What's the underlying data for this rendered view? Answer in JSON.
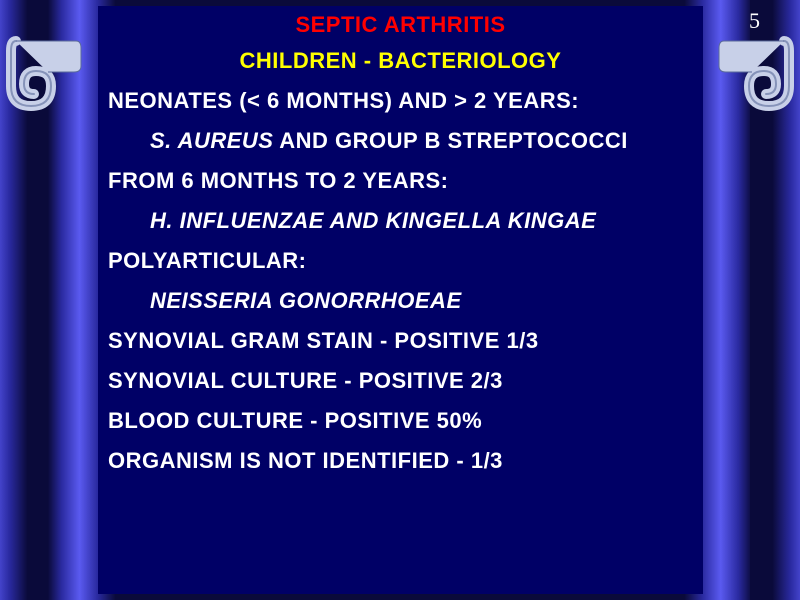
{
  "colors": {
    "slide_bg": "#0a0a3a",
    "content_bg": "#000066",
    "title1_color": "#ff0000",
    "title2_color": "#ffff00",
    "body_color": "#ffffff",
    "page_num_color": "#ffffff",
    "scroll_fill": "#c8d0e8",
    "scroll_shadow": "#5a6a9a"
  },
  "page_number": "5",
  "title1": "SEPTIC ARTHRITIS",
  "title2": "CHILDREN - BACTERIOLOGY",
  "lines": [
    {
      "text": "NEONATES (< 6 MONTHS) AND > 2 YEARS:",
      "indent": false,
      "italic": false,
      "pre": "",
      "pre_italic": ""
    },
    {
      "text": " AND GROUP B STREPTOCOCCI",
      "indent": true,
      "italic": false,
      "pre": "S. AUREUS",
      "pre_italic": "true"
    },
    {
      "text": "FROM 6 MONTHS TO 2 YEARS:",
      "indent": false,
      "italic": false,
      "pre": "",
      "pre_italic": ""
    },
    {
      "text": "H. INFLUENZAE AND KINGELLA KINGAE",
      "indent": true,
      "italic": true,
      "pre": "",
      "pre_italic": ""
    },
    {
      "text": "POLYARTICULAR:",
      "indent": false,
      "italic": false,
      "pre": "",
      "pre_italic": ""
    },
    {
      "text": "NEISSERIA GONORRHOEAE",
      "indent": true,
      "italic": true,
      "pre": "",
      "pre_italic": ""
    },
    {
      "text": "SYNOVIAL GRAM STAIN - POSITIVE 1/3",
      "indent": false,
      "italic": false,
      "pre": "",
      "pre_italic": ""
    },
    {
      "text": "SYNOVIAL CULTURE - POSITIVE 2/3",
      "indent": false,
      "italic": false,
      "pre": "",
      "pre_italic": ""
    },
    {
      "text": "BLOOD CULTURE - POSITIVE 50%",
      "indent": false,
      "italic": false,
      "pre": "",
      "pre_italic": ""
    },
    {
      "text": "ORGANISM IS NOT IDENTIFIED - 1/3",
      "indent": false,
      "italic": false,
      "pre": "",
      "pre_italic": ""
    }
  ],
  "typography": {
    "title_fontsize": 22,
    "body_fontsize": 22,
    "font_family": "Arial"
  }
}
